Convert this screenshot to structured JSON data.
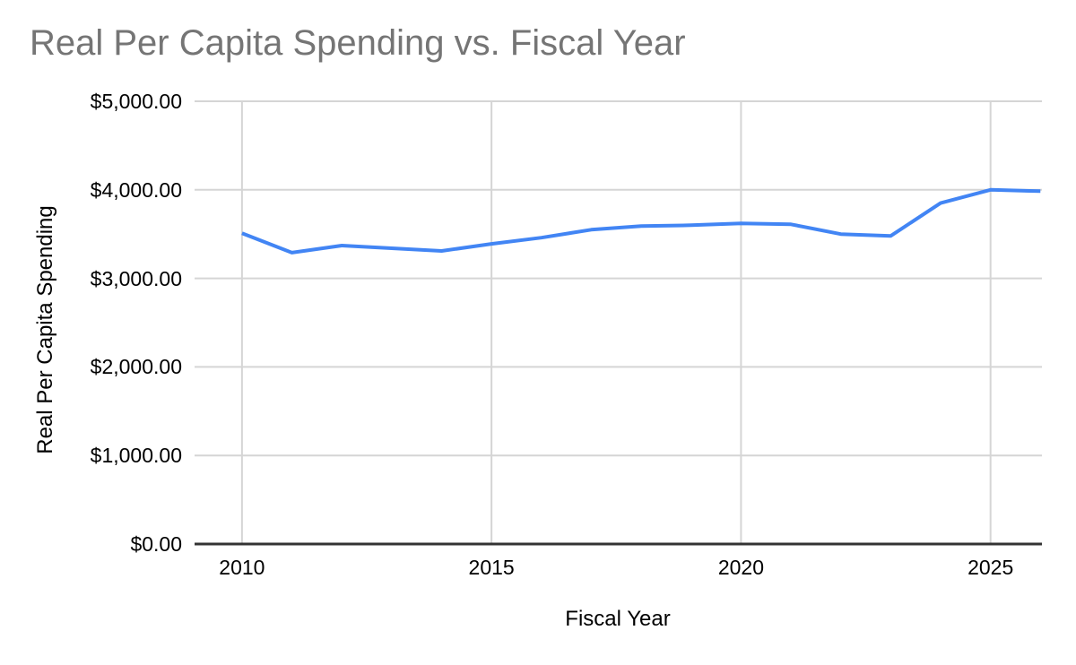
{
  "chart_data": {
    "type": "line",
    "title": "Real Per Capita Spending vs. Fiscal Year",
    "xlabel": "Fiscal Year",
    "ylabel": "Real Per Capita Spending",
    "x": [
      2010,
      2011,
      2012,
      2013,
      2014,
      2015,
      2016,
      2017,
      2018,
      2019,
      2020,
      2021,
      2022,
      2023,
      2024,
      2025,
      2026
    ],
    "series": [
      {
        "name": "Real Per Capita Spending",
        "values": [
          3510,
          3290,
          3370,
          3340,
          3310,
          3390,
          3460,
          3550,
          3590,
          3600,
          3620,
          3610,
          3500,
          3480,
          3850,
          4000,
          3985
        ]
      }
    ],
    "xlim": [
      2009.05,
      2026.03
    ],
    "ylim": [
      0,
      5000
    ],
    "grid": true,
    "legend_position": "none",
    "x_ticks": [
      {
        "value": 2010,
        "label": "2010"
      },
      {
        "value": 2015,
        "label": "2015"
      },
      {
        "value": 2020,
        "label": "2020"
      },
      {
        "value": 2025,
        "label": "2025"
      }
    ],
    "y_ticks": [
      {
        "value": 0,
        "label": "$0.00"
      },
      {
        "value": 1000,
        "label": "$1,000.00"
      },
      {
        "value": 2000,
        "label": "$2,000.00"
      },
      {
        "value": 3000,
        "label": "$3,000.00"
      },
      {
        "value": 4000,
        "label": "$4,000.00"
      },
      {
        "value": 5000,
        "label": "$5,000.00"
      }
    ],
    "colors": {
      "line": "#4285f4",
      "grid": "#d5d5d5",
      "axis": "#333333",
      "title_text": "#757575",
      "tick_text": "#000000"
    }
  }
}
